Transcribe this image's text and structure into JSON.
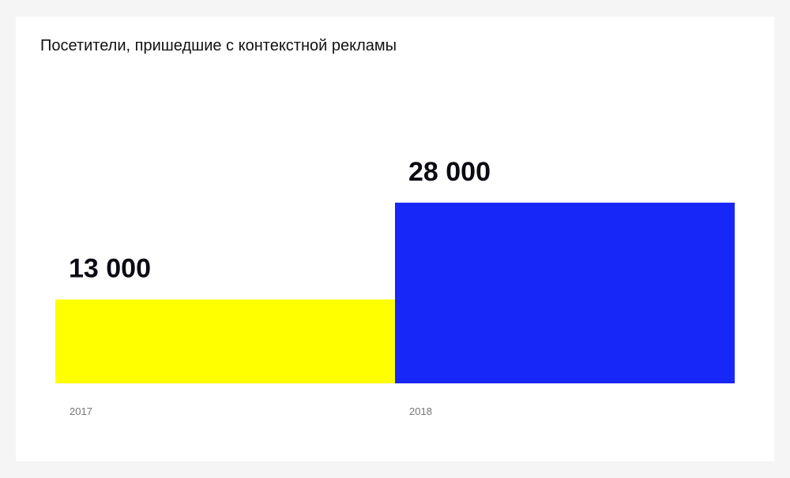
{
  "chart_data": {
    "type": "bar",
    "title": "Посетители, пришедшие с контекстной рекламы",
    "categories": [
      "2017",
      "2018"
    ],
    "values": [
      13000,
      28000
    ],
    "value_labels": [
      "13 000",
      "28 000"
    ],
    "colors": [
      "#ffff00",
      "#1727f7"
    ],
    "xlabel": "",
    "ylabel": "",
    "ylim": [
      0,
      33000
    ],
    "grid": false,
    "legend": "none"
  }
}
